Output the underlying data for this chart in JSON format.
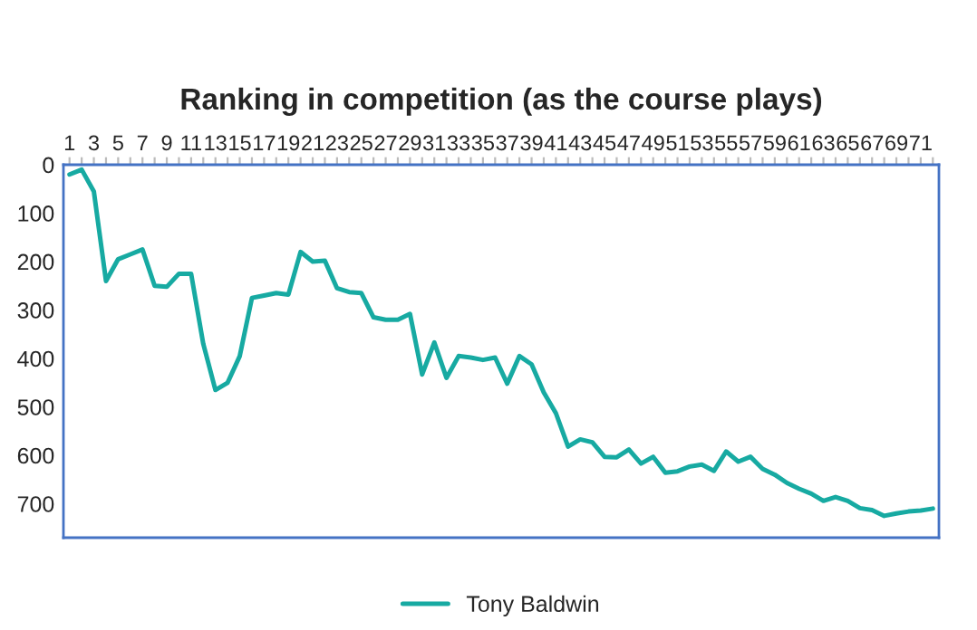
{
  "chart_data": {
    "type": "line",
    "title": "Ranking in competition (as the course plays)",
    "categories": [
      "1",
      null,
      "3",
      null,
      "5",
      null,
      "7",
      null,
      "9",
      null,
      "11",
      null,
      "13",
      null,
      "15",
      null,
      "17",
      null,
      "19",
      null,
      "21",
      null,
      "23",
      null,
      "25",
      null,
      "27",
      null,
      "29",
      null,
      "31",
      null,
      "33",
      null,
      "35",
      null,
      "37",
      null,
      "39",
      null,
      "41",
      null,
      "43",
      null,
      "45",
      null,
      "47",
      null,
      "49",
      null,
      "51",
      null,
      "53",
      null,
      "55",
      null,
      "57",
      null,
      "59",
      null,
      "61",
      null,
      "63",
      null,
      "65",
      null,
      "67",
      null,
      "69",
      null,
      "71",
      null
    ],
    "series": [
      {
        "name": "Tony Baldwin",
        "color": "#17aaa2",
        "values": [
          20,
          10,
          55,
          240,
          195,
          185,
          175,
          250,
          252,
          225,
          225,
          370,
          465,
          450,
          395,
          275,
          270,
          265,
          268,
          180,
          200,
          198,
          255,
          263,
          265,
          315,
          320,
          320,
          308,
          433,
          367,
          440,
          395,
          398,
          403,
          398,
          452,
          395,
          412,
          470,
          513,
          582,
          567,
          573,
          603,
          604,
          588,
          617,
          603,
          636,
          633,
          623,
          619,
          632,
          592,
          613,
          603,
          628,
          640,
          657,
          669,
          679,
          694,
          686,
          694,
          709,
          713,
          725,
          720,
          716,
          714,
          710
        ]
      }
    ],
    "ylim": [
      770,
      0
    ],
    "yticks": [
      0,
      100,
      200,
      300,
      400,
      500,
      600,
      700
    ],
    "grid": false,
    "legend": "bottom",
    "marker": "none",
    "line_style": "solid"
  }
}
